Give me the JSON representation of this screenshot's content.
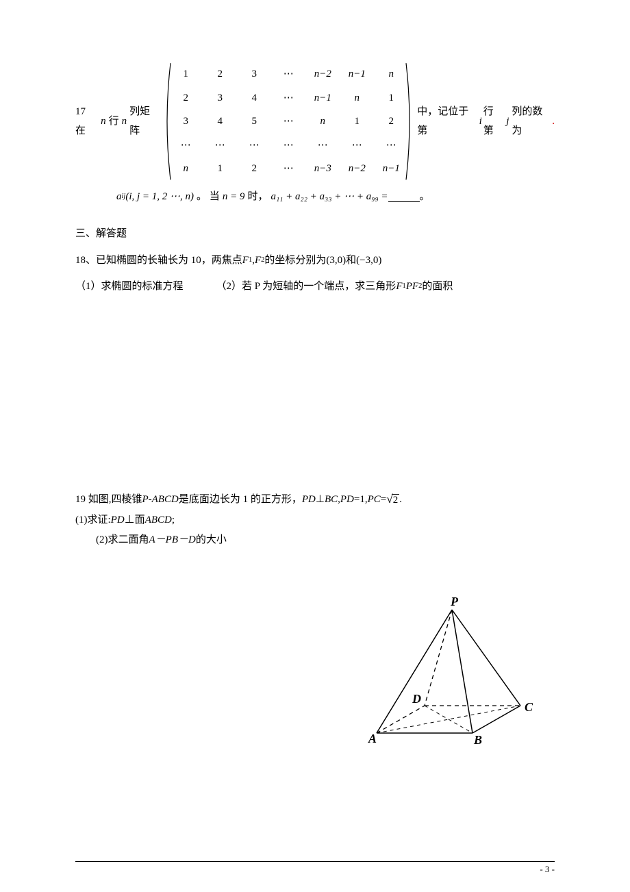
{
  "q17": {
    "lead_a": "17 在",
    "nrow": "n",
    "mid1": "行",
    "ncol": "n",
    "mid2": "列矩阵",
    "matrix": [
      [
        "1",
        "2",
        "3",
        "⋯",
        "n−2",
        "n−1",
        "n"
      ],
      [
        "2",
        "3",
        "4",
        "⋯",
        "n−1",
        "n",
        "1"
      ],
      [
        "3",
        "4",
        "5",
        "⋯",
        "n",
        "1",
        "2"
      ],
      [
        "⋯",
        "⋯",
        "⋯",
        "⋯",
        "⋯",
        "⋯",
        "⋯"
      ],
      [
        "n",
        "1",
        "2",
        "⋯",
        "n−3",
        "n−2",
        "n−1"
      ]
    ],
    "tail_a": "中，记位于第",
    "ivar": "i",
    "tail_b": "行第",
    "jvar": "j",
    "tail_c": "列的数为",
    "line2_left": "a",
    "line2_sub": "ij",
    "line2_dom": "(i, j = 1, 2 ⋯, n)",
    "line2_mid": "。 当",
    "line2_nset": "n = 9",
    "line2_after": "时，",
    "line2_sum": "a₁₁ + a₂₂ + a₃₃ + ⋯ + a₉₉ =",
    "line2_end": "。"
  },
  "sec3": "三、解答题",
  "q18": {
    "line1_a": "18、已知椭圆的长轴长为 10，两焦点",
    "F1": "F",
    "F1s": "1",
    "comma": ", ",
    "F2": "F",
    "F2s": "2",
    "line1_b": "的坐标分别为",
    "coords": "(3,0)和(−3,0)",
    "part1": "（1）求椭圆的标准方程",
    "part2_a": "（2）若 P 为短轴的一个端点，求三角形",
    "tri_a": "F",
    "tri_as": "1",
    "tri_b": "PF",
    "tri_bs": "2",
    "part2_b": "的面积"
  },
  "q19": {
    "line1_a": "19 如图,四棱锥 ",
    "solid": "P-ABCD",
    "line1_b": "是底面边长为 1 的正方形，",
    "pd_perp": "PD",
    "perp": "⊥",
    "bc": "BC",
    "c1": ",",
    "pde": "PD",
    "eq1": "=1,",
    "pce": "PC",
    "eq2": "=",
    "root2": "2",
    "tail": " .",
    "line2": "(1)求证:",
    "pd2": "PD",
    "perp2": "⊥面",
    "abcd": " ABCD",
    "semi": ";",
    "line3_a": "(2)求二面角 ",
    "ang": "A－PB－D",
    "line3_b": "的大小"
  },
  "labels": {
    "P": "P",
    "A": "A",
    "B": "B",
    "C": "C",
    "D": "D"
  },
  "footer": "- 3 -"
}
